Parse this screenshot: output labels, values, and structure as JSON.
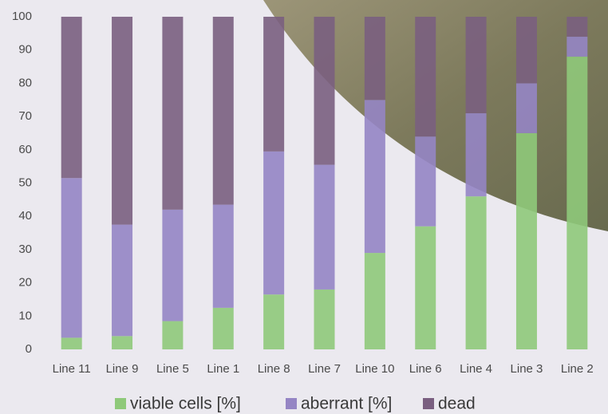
{
  "chart_data": {
    "type": "stacked_bar",
    "categories": [
      "Line 11",
      "Line 9",
      "Line 5",
      "Line 1",
      "Line 8",
      "Line 7",
      "Line 10",
      "Line 6",
      "Line 4",
      "Line 3",
      "Line 2"
    ],
    "series": [
      {
        "name": "viable cells [%]",
        "color": "#8fc97a",
        "values": [
          3.5,
          4,
          8.5,
          12.5,
          16.5,
          18,
          29,
          37,
          46,
          65,
          88
        ]
      },
      {
        "name": "aberrant [%]",
        "color": "#9585c4",
        "values": [
          48,
          33.5,
          33.5,
          31,
          43,
          37.5,
          46,
          27,
          25,
          15,
          6
        ]
      },
      {
        "name": "dead",
        "color": "#7a5f80",
        "values": [
          48.5,
          62.5,
          58,
          56.5,
          40.5,
          44.5,
          25,
          36,
          29,
          20,
          6
        ]
      }
    ],
    "ylim": [
      0,
      100
    ],
    "yticks": [
      0,
      10,
      20,
      30,
      40,
      50,
      60,
      70,
      80,
      90,
      100
    ],
    "legend": "bottom"
  }
}
